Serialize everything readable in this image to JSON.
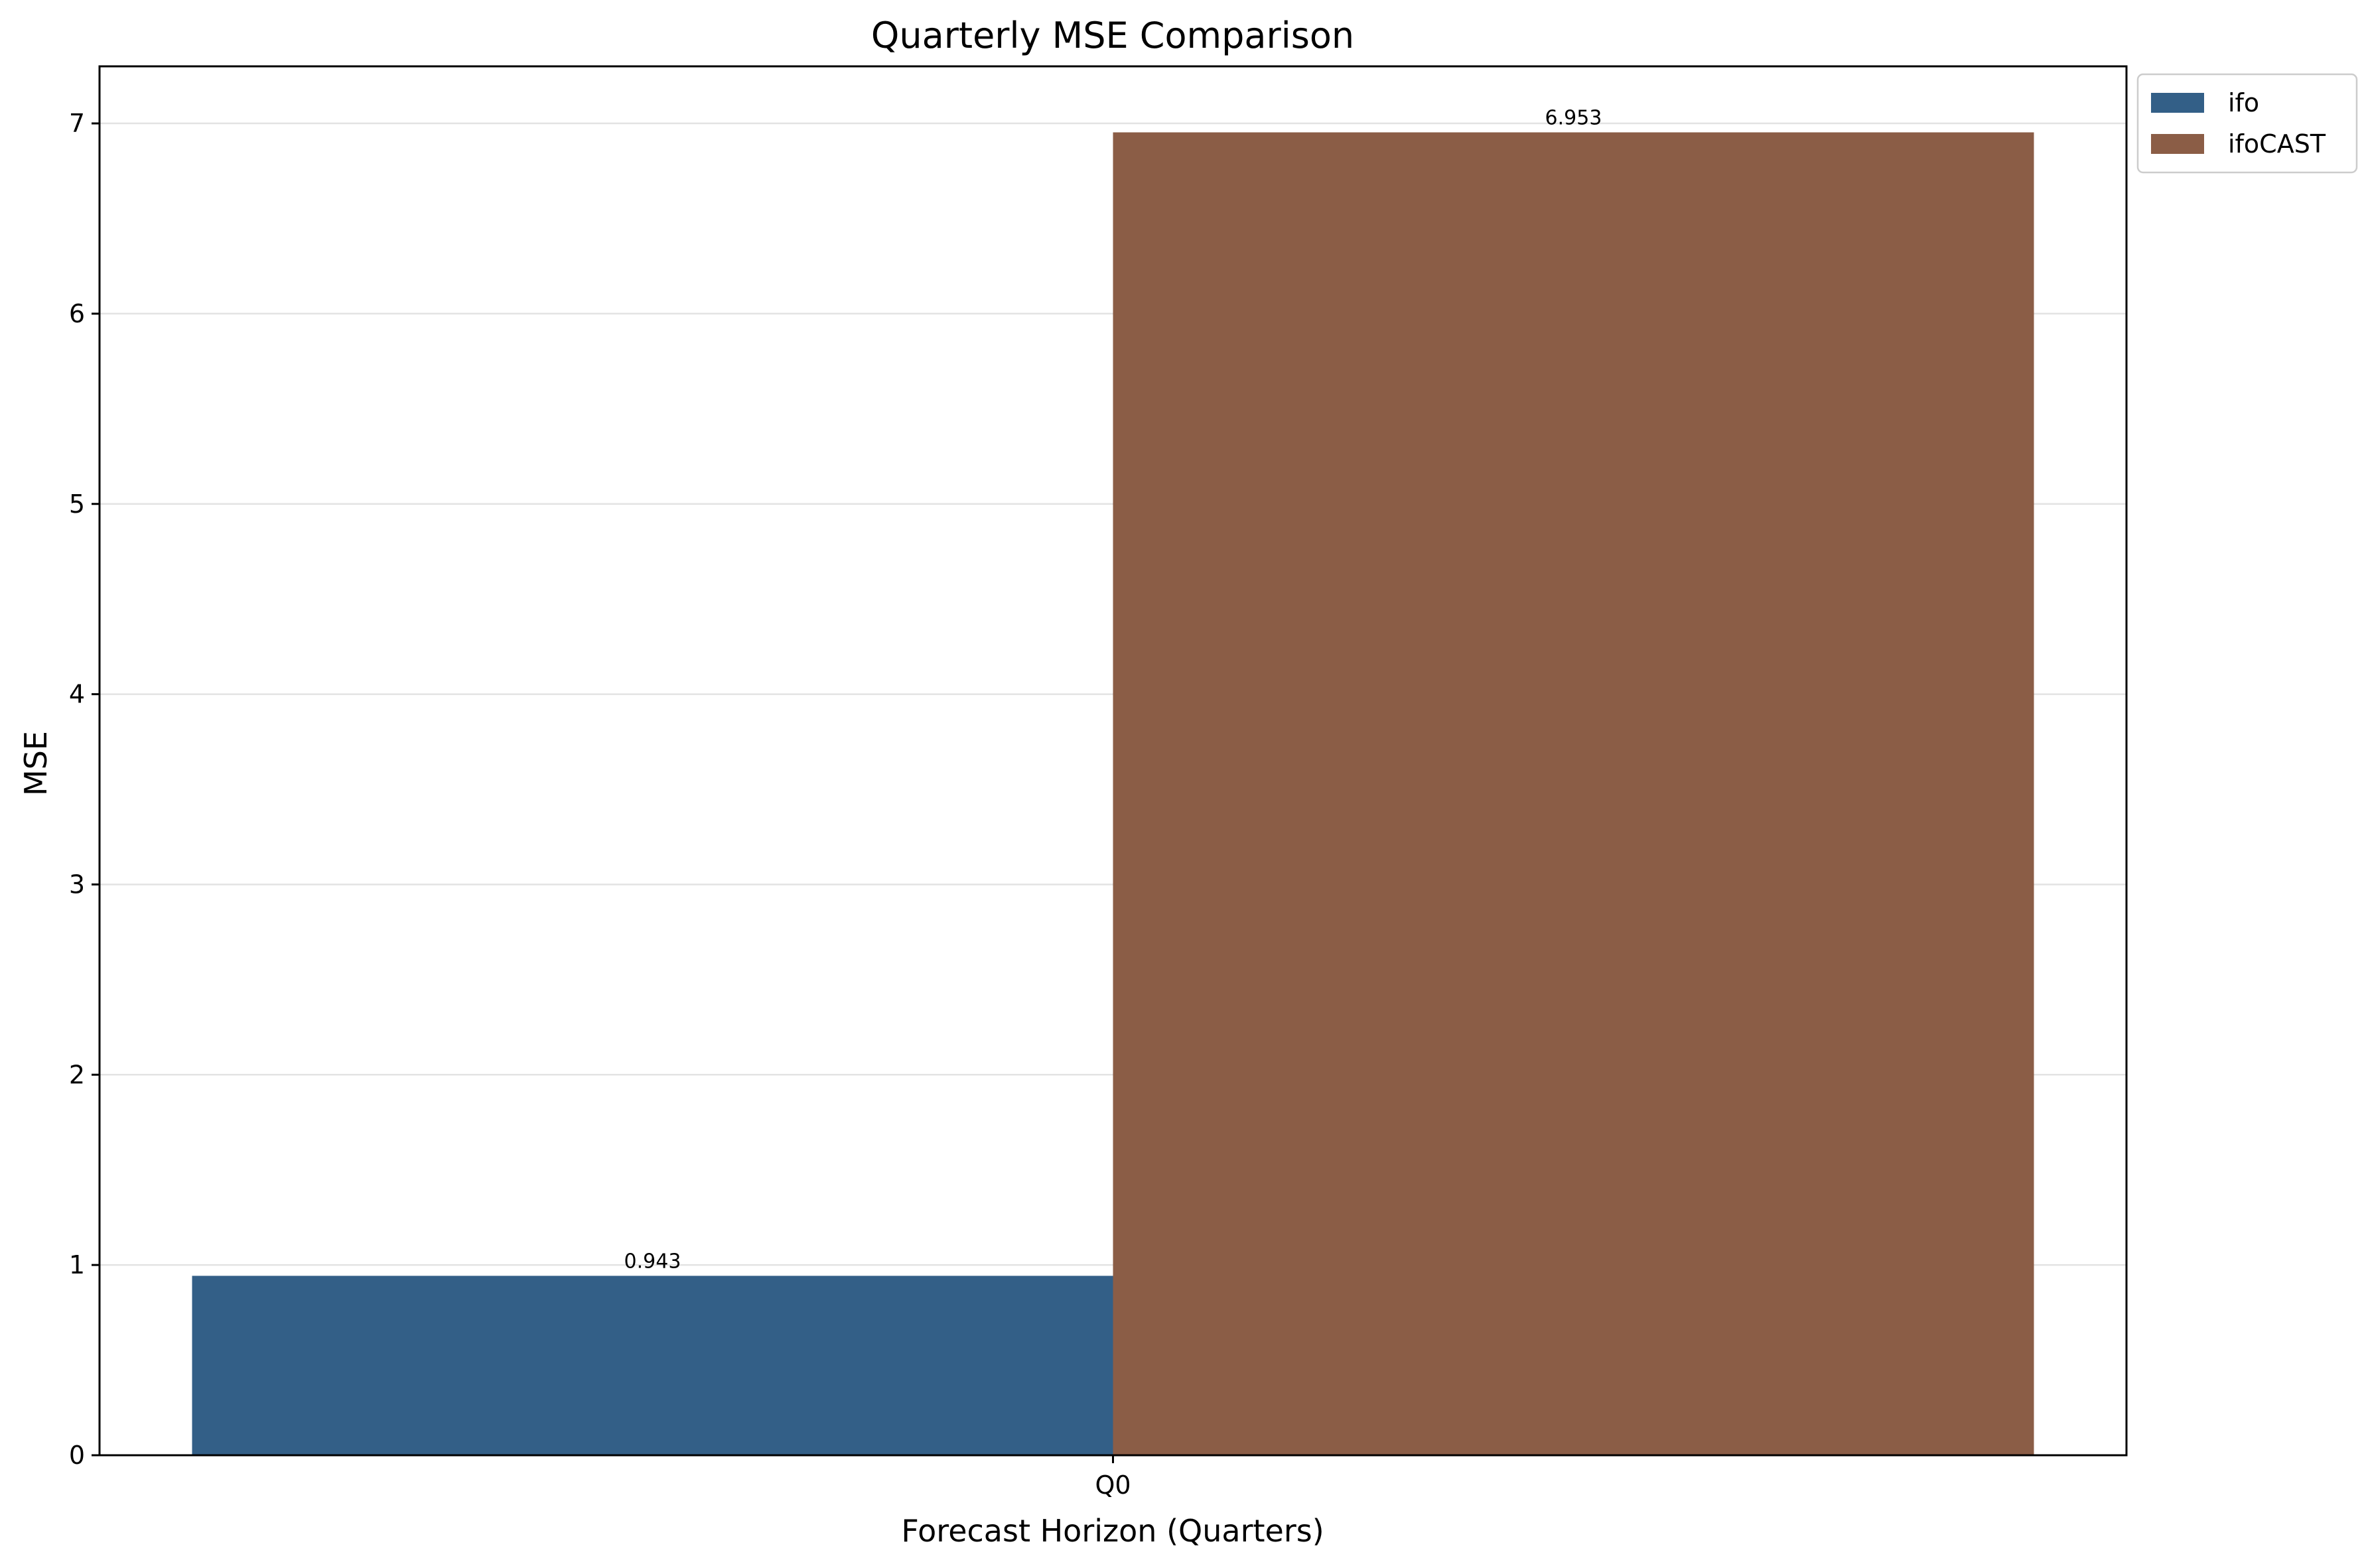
{
  "chart_data": {
    "type": "bar",
    "title": "Quarterly MSE Comparison",
    "xlabel": "Forecast Horizon (Quarters)",
    "ylabel": "MSE",
    "categories": [
      "Q0"
    ],
    "series": [
      {
        "name": "ifo",
        "values": [
          0.943
        ],
        "labels": [
          "0.943"
        ],
        "color": "#335f87"
      },
      {
        "name": "ifoCAST",
        "values": [
          6.953
        ],
        "labels": [
          "6.953"
        ],
        "color": "#8b5d46"
      }
    ],
    "ylim": [
      0,
      7.3
    ],
    "yticks": [
      0,
      1,
      2,
      3,
      4,
      5,
      6,
      7
    ],
    "grid": true,
    "legend_position": "outside-top-right"
  }
}
